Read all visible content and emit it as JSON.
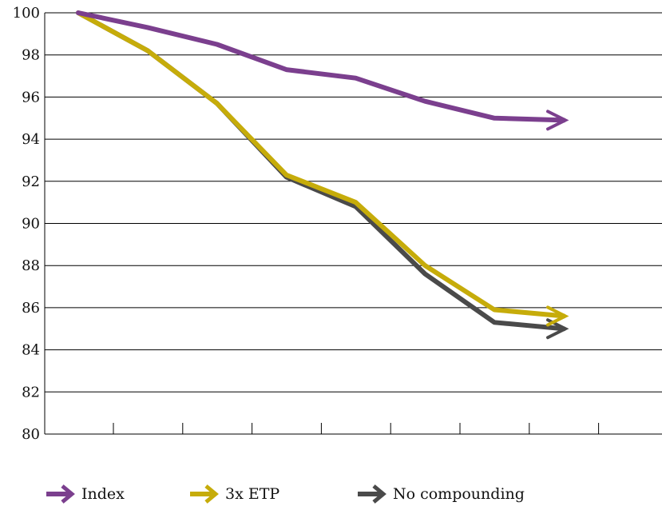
{
  "chart_data": {
    "type": "line",
    "title": "",
    "xlabel": "",
    "ylabel": "",
    "ylim": [
      80,
      100
    ],
    "yticks": [
      80,
      82,
      84,
      86,
      88,
      90,
      92,
      94,
      96,
      98,
      100
    ],
    "grid": true,
    "legend_position": "bottom",
    "x_tick_count": 8,
    "x": [
      0,
      1,
      2,
      3,
      4,
      5,
      6,
      7
    ],
    "series": [
      {
        "name": "Index",
        "color": "#7b3f8e",
        "values": [
          100,
          99.3,
          98.5,
          97.3,
          96.9,
          95.8,
          95.0,
          94.9
        ]
      },
      {
        "name": "3x ETP",
        "color": "#c6ac0a",
        "values": [
          100,
          98.2,
          95.7,
          92.3,
          91.0,
          88.0,
          85.9,
          85.6
        ]
      },
      {
        "name": "No compounding",
        "color": "#4a4a4a",
        "values": [
          100,
          98.2,
          95.7,
          92.2,
          90.8,
          87.6,
          85.3,
          85.0
        ]
      }
    ]
  }
}
